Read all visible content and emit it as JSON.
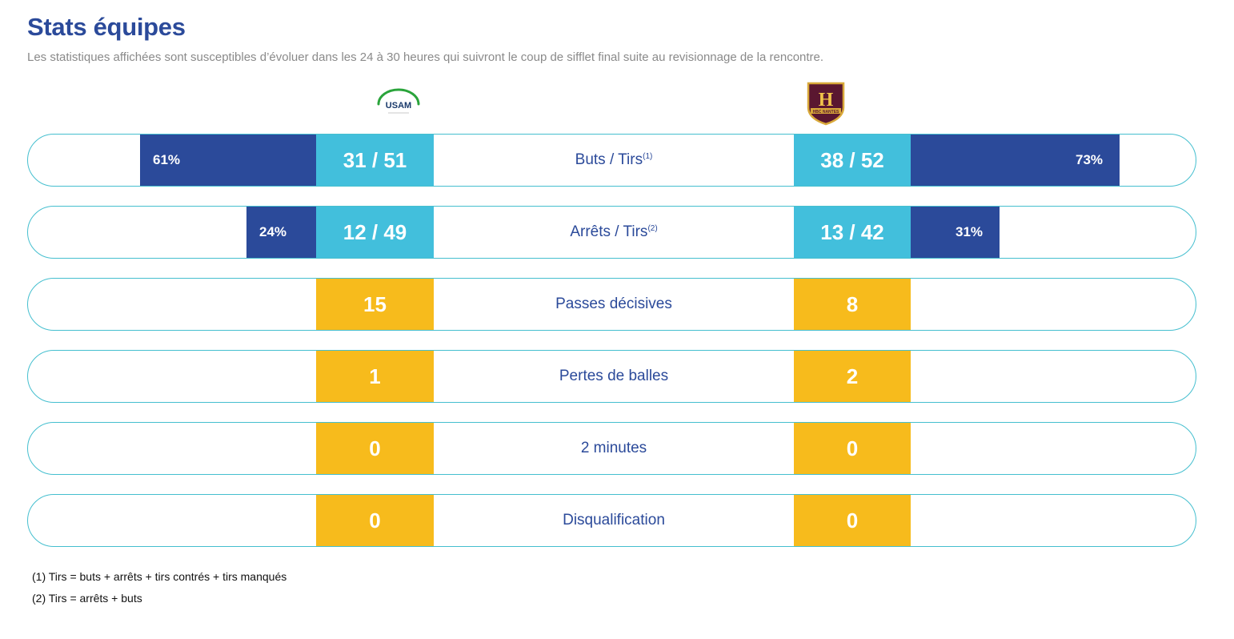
{
  "header": {
    "title": "Stats équipes",
    "subtitle": "Les statistiques affichées sont susceptibles d’évoluer dans les 24 à 30 heures qui suivront le coup de sifflet final suite au revisionnage de la rencontre."
  },
  "teams": {
    "home": {
      "logo_text": "USAM",
      "accent_color": "#2aa43b"
    },
    "away": {
      "logo_text": "H",
      "logo_subtext": "HBC NANTES",
      "accent_color": "#5a1730"
    }
  },
  "colors": {
    "primary": "#2b4a9a",
    "score_blue": "#42bfdc",
    "score_yellow": "#f7bb1c",
    "row_border": "#45bfcf",
    "subtitle_gray": "#8a8a8a"
  },
  "stats": [
    {
      "label": "Buts / Tirs",
      "note": "(1)",
      "home": "31 / 51",
      "away": "38 / 52",
      "home_pct": "61%",
      "away_pct": "73%",
      "home_pct_value": 61,
      "away_pct_value": 73,
      "color": "blue"
    },
    {
      "label": "Arrêts / Tirs",
      "note": "(2)",
      "home": "12 / 49",
      "away": "13 / 42",
      "home_pct": "24%",
      "away_pct": "31%",
      "home_pct_value": 24,
      "away_pct_value": 31,
      "color": "blue"
    },
    {
      "label": "Passes décisives",
      "note": "",
      "home": "15",
      "away": "8",
      "color": "yellow"
    },
    {
      "label": "Pertes de balles",
      "note": "",
      "home": "1",
      "away": "2",
      "color": "yellow"
    },
    {
      "label": "2 minutes",
      "note": "",
      "home": "0",
      "away": "0",
      "color": "yellow"
    },
    {
      "label": "Disqualification",
      "note": "",
      "home": "0",
      "away": "0",
      "color": "yellow"
    }
  ],
  "footnotes": [
    "(1) Tirs = buts + arrêts + tirs contrés + tirs manqués",
    "(2) Tirs = arrêts + buts"
  ]
}
